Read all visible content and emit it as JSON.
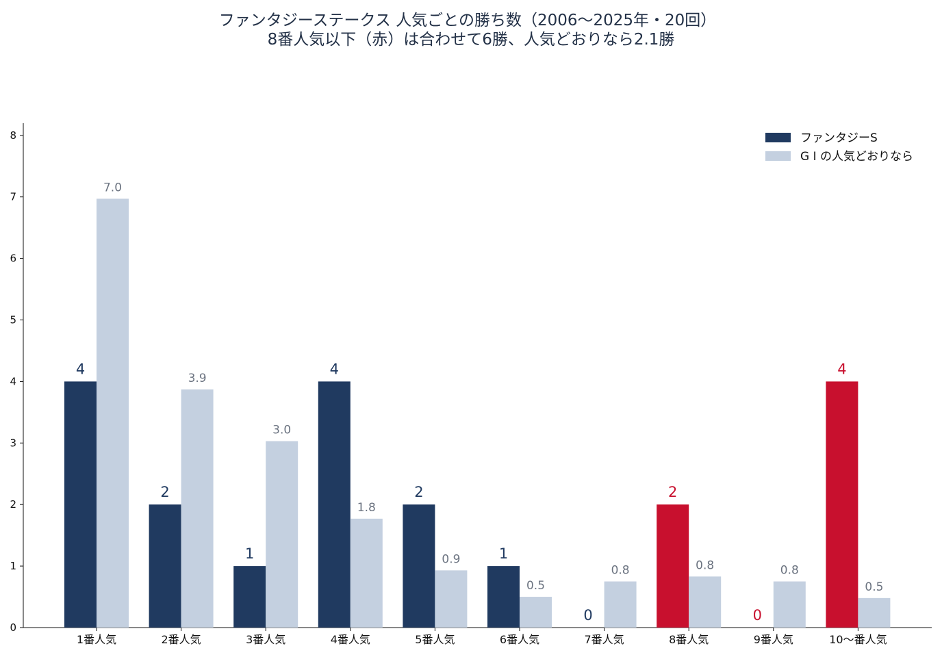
{
  "title_line1": "ファンタジーステークス 人気ごとの勝ち数（2006〜2025年・20回）",
  "title_line2": "8番人気以下（赤）は合わせて6勝、人気どおりなら2.1勝",
  "colors": {
    "fantasy": "#203a60",
    "highlight": "#c8102e",
    "reference": "#c4d0e0",
    "ref_label": "#6b7380"
  },
  "chart_data": {
    "type": "bar",
    "title": "ファンタジーステークス 人気ごとの勝ち数（2006〜2025年・20回）",
    "subtitle": "8番人気以下（赤）は合わせて6勝、人気どおりなら2.1勝",
    "categories": [
      "1番人気",
      "2番人気",
      "3番人気",
      "4番人気",
      "5番人気",
      "6番人気",
      "7番人気",
      "8番人気",
      "9番人気",
      "10〜番人気"
    ],
    "series": [
      {
        "name": "ファンタジーS",
        "values": [
          4,
          2,
          1,
          4,
          2,
          1,
          0,
          2,
          0,
          4
        ],
        "labels": [
          "4",
          "2",
          "1",
          "4",
          "2",
          "1",
          "0",
          "2",
          "0",
          "4"
        ]
      },
      {
        "name": "G I の人気どおりなら",
        "values": [
          6.97,
          3.87,
          3.03,
          1.77,
          0.93,
          0.5,
          0.75,
          0.83,
          0.75,
          0.48
        ],
        "labels": [
          "7.0",
          "3.9",
          "3.0",
          "1.8",
          "0.9",
          "0.5",
          "0.8",
          "0.8",
          "0.8",
          "0.5"
        ]
      }
    ],
    "highlighted_categories": [
      "8番人気",
      "9番人気",
      "10〜番人気"
    ],
    "yticks": [
      0,
      1,
      2,
      3,
      4,
      5,
      6,
      7,
      8
    ],
    "ylim": [
      0,
      8.2
    ],
    "xlabel": "",
    "ylabel": "",
    "grid": false,
    "legend_position": "top-right"
  }
}
